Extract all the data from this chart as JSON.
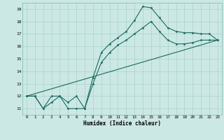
{
  "title": "",
  "xlabel": "Humidex (Indice chaleur)",
  "xlim": [
    -0.5,
    23.5
  ],
  "ylim": [
    10.5,
    19.5
  ],
  "yticks": [
    11,
    12,
    13,
    14,
    15,
    16,
    17,
    18,
    19
  ],
  "xticks": [
    0,
    1,
    2,
    3,
    4,
    5,
    6,
    7,
    8,
    9,
    10,
    11,
    12,
    13,
    14,
    15,
    16,
    17,
    18,
    19,
    20,
    21,
    22,
    23
  ],
  "bg_color": "#cce8e4",
  "grid_color": "#aad0cc",
  "line_color": "#1a6b5e",
  "line1_x": [
    0,
    1,
    2,
    3,
    4,
    5,
    6,
    7,
    8,
    9,
    10,
    11,
    12,
    13,
    14,
    15,
    16,
    17,
    18,
    19,
    20,
    21,
    22,
    23
  ],
  "line1_y": [
    12,
    12,
    11,
    11.5,
    12,
    11,
    11,
    11,
    13.5,
    15.5,
    16.2,
    16.7,
    17.2,
    18.1,
    19.2,
    19.1,
    18.3,
    17.5,
    17.2,
    17.1,
    17.1,
    17.0,
    17.0,
    16.5
  ],
  "line2_x": [
    0,
    1,
    2,
    3,
    4,
    5,
    6,
    7,
    8,
    9,
    10,
    11,
    12,
    13,
    14,
    15,
    16,
    17,
    18,
    19,
    20,
    21,
    22,
    23
  ],
  "line2_y": [
    12,
    12,
    11,
    12,
    12,
    11.5,
    12,
    11,
    13,
    14.7,
    15.5,
    16.1,
    16.5,
    17.0,
    17.5,
    18.0,
    17.2,
    16.5,
    16.2,
    16.2,
    16.3,
    16.5,
    16.5,
    16.5
  ],
  "line3_x": [
    0,
    23
  ],
  "line3_y": [
    12,
    16.5
  ]
}
